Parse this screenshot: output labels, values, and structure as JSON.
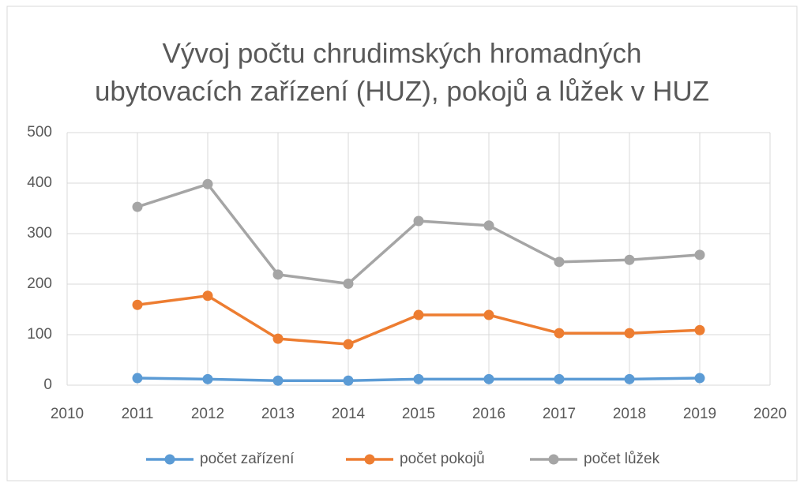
{
  "chart_data": {
    "type": "line",
    "title": [
      "Vývoj počtu chrudimských hromadných",
      "ubytovacích zařízení (HUZ), pokojů a lůžek v HUZ"
    ],
    "x": [
      2011,
      2012,
      2013,
      2014,
      2015,
      2016,
      2017,
      2018,
      2019
    ],
    "series": [
      {
        "name": "počet zařízení",
        "color": "#5b9bd5",
        "values": [
          14,
          12,
          9,
          9,
          12,
          12,
          12,
          12,
          14
        ]
      },
      {
        "name": "počet pokojů",
        "color": "#ed7d31",
        "values": [
          159,
          177,
          92,
          81,
          139,
          139,
          103,
          103,
          109
        ]
      },
      {
        "name": "počet lůžek",
        "color": "#a5a5a5",
        "values": [
          353,
          398,
          219,
          201,
          325,
          316,
          244,
          248,
          258
        ]
      }
    ],
    "xlim": [
      2010,
      2020
    ],
    "xticks": [
      2010,
      2011,
      2012,
      2013,
      2014,
      2015,
      2016,
      2017,
      2018,
      2019,
      2020
    ],
    "ylim": [
      0,
      500
    ],
    "yticks": [
      0,
      100,
      200,
      300,
      400,
      500
    ],
    "grid": true,
    "legend": "bottom"
  }
}
